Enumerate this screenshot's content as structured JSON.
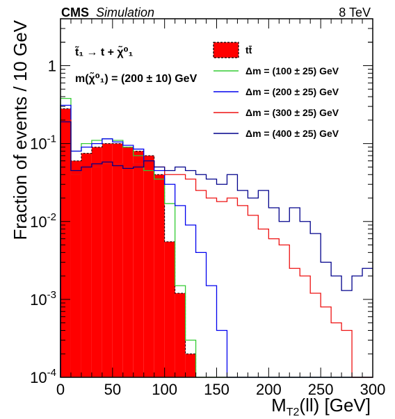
{
  "chart_data": {
    "type": "histogram-step",
    "header_left_bold": "CMS",
    "header_left_italic": "Simulation",
    "header_right": "8 TeV",
    "xlabel": "M_T2(ll) [GeV]",
    "ylabel": "Fraction of events / 10 GeV",
    "xlim": [
      0,
      300
    ],
    "ylim": [
      0.0001,
      4
    ],
    "yscale": "log",
    "bin_width": 10,
    "x_ticks": [
      "0",
      "50",
      "100",
      "150",
      "200",
      "250",
      "300"
    ],
    "y_ticks": [
      {
        "base": "10",
        "exp": "-4",
        "value": 0.0001
      },
      {
        "base": "10",
        "exp": "-3",
        "value": 0.001
      },
      {
        "base": "10",
        "exp": "-2",
        "value": 0.01
      },
      {
        "base": "10",
        "exp": "-1",
        "value": 0.1
      },
      {
        "base": "1",
        "exp": "",
        "value": 1
      }
    ],
    "annotation_process": "t̃₁ → t + χ̃⁰₁",
    "annotation_mass": "m(χ̃⁰₁) = (200 ± 10) GeV",
    "legend_position": "top-right",
    "series": [
      {
        "name": "tt̄",
        "style": "filled",
        "color": "#ff0000",
        "values": [
          0.28,
          0.06,
          0.075,
          0.09,
          0.1,
          0.1,
          0.09,
          0.08,
          0.07,
          0.04,
          0.0055,
          0.0012,
          0.0002,
          0,
          0,
          0,
          0,
          0,
          0,
          0,
          0,
          0,
          0,
          0,
          0,
          0,
          0,
          0,
          0,
          0
        ]
      },
      {
        "name": "Δm = (100 ± 25) GeV",
        "style": "line",
        "color": "#33cc33",
        "values": [
          0.38,
          0.08,
          0.1,
          0.11,
          0.115,
          0.11,
          0.09,
          0.07,
          0.045,
          0.035,
          0.017,
          0.0015,
          0.0003,
          0,
          0,
          0,
          0,
          0,
          0,
          0,
          0,
          0,
          0,
          0,
          0,
          0,
          0,
          0,
          0,
          0
        ]
      },
      {
        "name": "Δm = (200 ± 25) GeV",
        "style": "line",
        "color": "#0000ee",
        "values": [
          0.31,
          0.08,
          0.09,
          0.1,
          0.115,
          0.105,
          0.095,
          0.085,
          0.06,
          0.045,
          0.03,
          0.016,
          0.009,
          0.004,
          0.0015,
          0.0004,
          0,
          0,
          0,
          0,
          0,
          0,
          0,
          0,
          0,
          0,
          0,
          0,
          0,
          0
        ]
      },
      {
        "name": "Δm = (300 ± 25) GeV",
        "style": "line",
        "color": "#ee1111",
        "values": [
          0.2,
          0.04,
          0.05,
          0.05,
          0.055,
          0.055,
          0.05,
          0.055,
          0.06,
          0.05,
          0.04,
          0.04,
          0.035,
          0.025,
          0.02,
          0.018,
          0.02,
          0.016,
          0.012,
          0.008,
          0.006,
          0.005,
          0.0025,
          0.002,
          0.0012,
          0.0008,
          0.0005,
          0.0004,
          0,
          0
        ]
      },
      {
        "name": "Δm = (400 ± 25) GeV",
        "style": "line",
        "color": "#00008b",
        "values": [
          0.19,
          0.045,
          0.05,
          0.055,
          0.058,
          0.052,
          0.048,
          0.05,
          0.06,
          0.05,
          0.045,
          0.05,
          0.045,
          0.04,
          0.035,
          0.03,
          0.04,
          0.025,
          0.02,
          0.025,
          0.015,
          0.01,
          0.015,
          0.01,
          0.007,
          0.003,
          0.002,
          0.0013,
          0.002,
          0.0025
        ]
      }
    ]
  }
}
